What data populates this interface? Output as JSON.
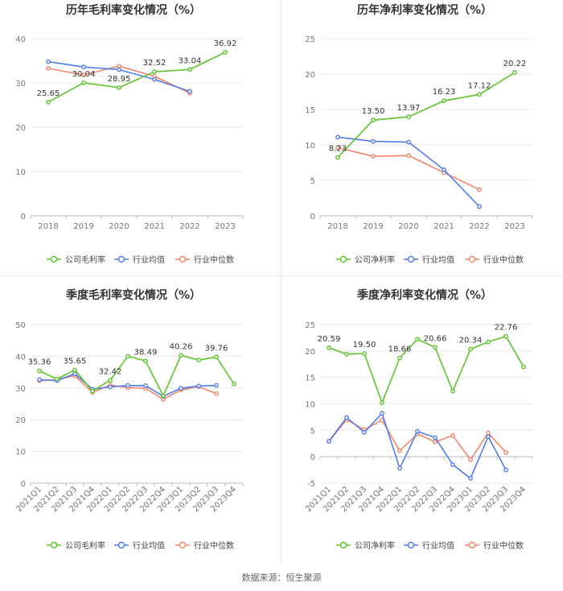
{
  "footer": {
    "source": "数据来源：恒生聚源"
  },
  "colors": {
    "company": "#5cc52a",
    "avg": "#4f7cf0",
    "median": "#f4856b",
    "axis": "#cccccc",
    "grid": "#e9e9e9",
    "label": "#333333",
    "tick": "#777777"
  },
  "chart_data": [
    {
      "type": "line",
      "title": "历年毛利率变化情况（%）",
      "categories": [
        "2018",
        "2019",
        "2020",
        "2021",
        "2022",
        "2023"
      ],
      "ylim": [
        0,
        40
      ],
      "yticks": [
        0,
        10,
        20,
        30,
        40
      ],
      "ytick_labels": [
        "0",
        "10",
        "20",
        "30",
        "40"
      ],
      "xlabel": "",
      "ylabel": "",
      "legend_position": "bottom",
      "series": [
        {
          "name": "公司毛利率",
          "values": [
            25.65,
            30.04,
            28.95,
            32.52,
            33.04,
            36.92
          ],
          "labels": [
            "25.65",
            "30.04",
            "28.95",
            "32.52",
            "33.04",
            "36.92"
          ]
        },
        {
          "name": "行业均值",
          "values": [
            34.8,
            33.6,
            33.0,
            30.8,
            28.1,
            null
          ]
        },
        {
          "name": "行业中位数",
          "values": [
            33.3,
            31.8,
            33.8,
            31.5,
            27.7,
            null
          ]
        }
      ]
    },
    {
      "type": "line",
      "title": "历年净利率变化情况（%）",
      "categories": [
        "2018",
        "2019",
        "2020",
        "2021",
        "2022",
        "2023"
      ],
      "ylim": [
        0,
        25
      ],
      "yticks": [
        0,
        5,
        10,
        15,
        20,
        25
      ],
      "ytick_labels": [
        "0",
        "5",
        "10",
        "15",
        "20",
        "25"
      ],
      "xlabel": "",
      "ylabel": "",
      "legend_position": "bottom",
      "series": [
        {
          "name": "公司净利率",
          "values": [
            8.23,
            13.5,
            13.97,
            16.23,
            17.12,
            20.22
          ],
          "labels": [
            "8.23",
            "13.50",
            "13.97",
            "16.23",
            "17.12",
            "20.22"
          ]
        },
        {
          "name": "行业均值",
          "values": [
            11.1,
            10.5,
            10.4,
            6.5,
            1.3,
            null
          ]
        },
        {
          "name": "行业中位数",
          "values": [
            9.6,
            8.4,
            8.5,
            6.1,
            3.7,
            null
          ]
        }
      ]
    },
    {
      "type": "line",
      "title": "季度毛利率变化情况（%）",
      "categories": [
        "2021Q1",
        "2021Q2",
        "2021Q3",
        "2021Q4",
        "2022Q1",
        "2022Q2",
        "2022Q3",
        "2022Q4",
        "2023Q1",
        "2023Q2",
        "2023Q3",
        "2023Q4"
      ],
      "ylim": [
        0,
        50
      ],
      "yticks": [
        0,
        10,
        20,
        30,
        40,
        50
      ],
      "ytick_labels": [
        "0",
        "10",
        "20",
        "30",
        "40",
        "50"
      ],
      "xlabel": "",
      "ylabel": "",
      "legend_position": "bottom",
      "series": [
        {
          "name": "公司毛利率",
          "values": [
            35.36,
            32.8,
            35.65,
            29.0,
            32.42,
            40.0,
            38.49,
            27.5,
            40.26,
            38.8,
            39.76,
            31.2
          ],
          "labels": [
            "35.36",
            "",
            "35.65",
            "",
            "32.42",
            "",
            "38.49",
            "",
            "40.26",
            "",
            "39.76",
            ""
          ]
        },
        {
          "name": "行业均值",
          "values": [
            32.6,
            32.3,
            34.5,
            29.6,
            30.3,
            30.8,
            30.7,
            27.4,
            29.9,
            30.6,
            30.8,
            null
          ]
        },
        {
          "name": "行业中位数",
          "values": [
            32.3,
            32.6,
            33.9,
            28.6,
            30.9,
            30.1,
            29.9,
            26.4,
            29.4,
            30.4,
            28.2,
            null
          ]
        }
      ]
    },
    {
      "type": "line",
      "title": "季度净利率变化情况（%）",
      "categories": [
        "2021Q1",
        "2021Q2",
        "2021Q3",
        "2021Q4",
        "2022Q1",
        "2022Q2",
        "2022Q3",
        "2022Q4",
        "2023Q1",
        "2023Q2",
        "2023Q3",
        "2023Q4"
      ],
      "ylim": [
        -5,
        25
      ],
      "yticks": [
        -5,
        0,
        5,
        10,
        15,
        20,
        25
      ],
      "ytick_labels": [
        "-5",
        "0",
        "5",
        "10",
        "15",
        "20",
        "25"
      ],
      "xlabel": "",
      "ylabel": "",
      "legend_position": "bottom",
      "series": [
        {
          "name": "公司净利率",
          "values": [
            20.59,
            19.4,
            19.5,
            10.2,
            18.66,
            22.2,
            20.66,
            12.4,
            20.34,
            21.7,
            22.76,
            17.0
          ],
          "labels": [
            "20.59",
            "",
            "19.50",
            "",
            "18.66",
            "",
            "20.66",
            "",
            "20.34",
            "",
            "22.76",
            ""
          ]
        },
        {
          "name": "行业均值",
          "values": [
            2.9,
            7.4,
            4.6,
            8.2,
            -2.2,
            4.8,
            3.6,
            -1.5,
            -4.1,
            3.8,
            -2.5,
            null
          ]
        },
        {
          "name": "行业中位数",
          "values": [
            2.9,
            7.0,
            5.1,
            6.9,
            1.1,
            4.3,
            2.8,
            4.0,
            -0.6,
            4.5,
            0.8,
            null
          ]
        }
      ]
    }
  ]
}
